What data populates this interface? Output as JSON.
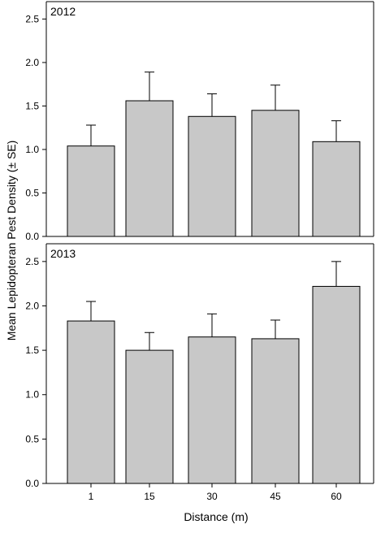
{
  "chart_data": {
    "type": "bar",
    "ylabel": "Mean Lepidopteran Pest Density (± SE)",
    "xlabel": "Distance (m)",
    "categories": [
      "1",
      "15",
      "30",
      "45",
      "60"
    ],
    "bar_color": "#c8c8c8",
    "panels": [
      {
        "title": "2012",
        "ylim": [
          0,
          2.7
        ],
        "yticks": [
          "0.0",
          "0.5",
          "1.0",
          "1.5",
          "2.0",
          "2.5"
        ],
        "values": [
          1.04,
          1.56,
          1.38,
          1.45,
          1.09
        ],
        "errors": [
          0.24,
          0.33,
          0.26,
          0.29,
          0.24
        ]
      },
      {
        "title": "2013",
        "ylim": [
          0,
          2.7
        ],
        "yticks": [
          "0.0",
          "0.5",
          "1.0",
          "1.5",
          "2.0",
          "2.5"
        ],
        "values": [
          1.83,
          1.5,
          1.65,
          1.63,
          2.22
        ],
        "errors": [
          0.22,
          0.2,
          0.26,
          0.21,
          0.28
        ]
      }
    ]
  }
}
